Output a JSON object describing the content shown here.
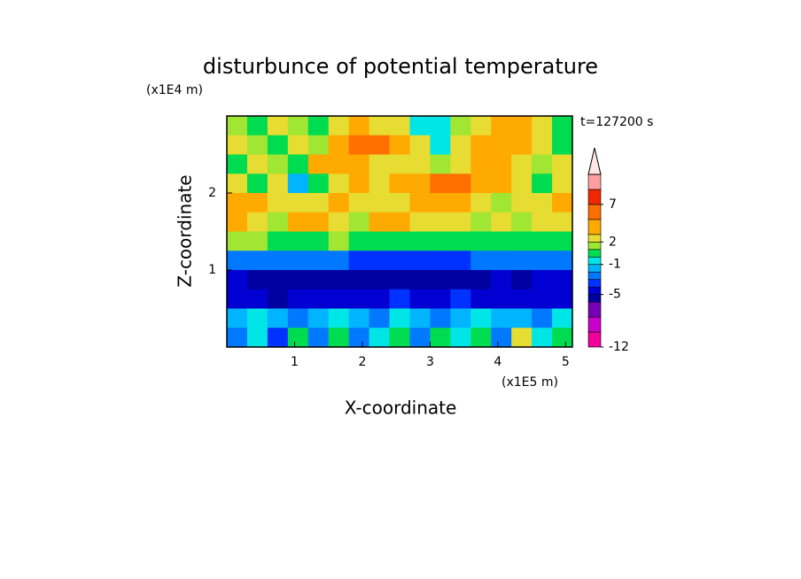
{
  "chart_data": {
    "type": "contour",
    "title": "disturbunce of potential temperature",
    "y_unit": "(x1E4 m)",
    "x_unit": "(x1E5 m)",
    "time_label": "t=127200 s",
    "xlabel": "X-coordinate",
    "ylabel": "Z-coordinate",
    "xlim": [
      0,
      5.1
    ],
    "ylim": [
      0,
      3
    ],
    "xticks": [
      1,
      2,
      3,
      4,
      5
    ],
    "yticks": [
      1,
      2
    ],
    "x": [
      0.15,
      0.45,
      0.75,
      1.05,
      1.35,
      1.65,
      1.95,
      2.25,
      2.55,
      2.85,
      3.15,
      3.45,
      3.75,
      4.05,
      4.35,
      4.65,
      4.95
    ],
    "y": [
      2.875,
      2.625,
      2.375,
      2.125,
      1.875,
      1.625,
      1.375,
      1.125,
      0.875,
      0.625,
      0.375,
      0.125
    ],
    "z": [
      [
        1.5,
        0.5,
        2.5,
        1.5,
        0.5,
        2.5,
        3,
        2.5,
        2.5,
        -0.5,
        -0.5,
        1.5,
        2.5,
        3.5,
        3.5,
        2.5,
        0.5
      ],
      [
        2.5,
        1.5,
        0.5,
        2.5,
        1.5,
        4,
        5.5,
        6,
        3,
        2.5,
        -0.5,
        2.5,
        3,
        4,
        3,
        2.5,
        0.5
      ],
      [
        0.5,
        2.5,
        1.5,
        0.5,
        3,
        4,
        4,
        2.5,
        2.5,
        2.5,
        1.5,
        2.5,
        3,
        3,
        2.5,
        1.5,
        2.5
      ],
      [
        2.5,
        0.5,
        2.5,
        -1.5,
        0.5,
        2.5,
        3,
        2.5,
        3,
        4,
        6,
        5.5,
        4,
        3,
        2.5,
        0.5,
        2.5
      ],
      [
        4,
        3,
        2.5,
        2.5,
        2.5,
        3,
        2.5,
        2.5,
        2.5,
        4,
        4,
        3,
        2.5,
        1.5,
        2.5,
        2.5,
        3
      ],
      [
        4,
        2.5,
        1.5,
        4,
        3,
        2.5,
        1.5,
        3,
        3,
        2.5,
        2.5,
        2.5,
        1.5,
        2.5,
        1.5,
        2.5,
        2.5
      ],
      [
        1.5,
        1.5,
        0.5,
        0.5,
        0.5,
        1.5,
        0.5,
        0.5,
        0.5,
        0.5,
        0.5,
        0.5,
        0.5,
        0.5,
        0.5,
        0.5,
        0.5
      ],
      [
        -2.5,
        -2.5,
        -2.5,
        -2.5,
        -2.5,
        -2.5,
        -3.5,
        -3.5,
        -3.5,
        -3.5,
        -3.5,
        -3.5,
        -2.5,
        -2.5,
        -2.5,
        -2.5,
        -2.5
      ],
      [
        -4.5,
        -5.5,
        -5.5,
        -5.5,
        -5.5,
        -5.5,
        -5.5,
        -5.5,
        -5.5,
        -5.5,
        -5.5,
        -5.5,
        -5.5,
        -4.5,
        -5.5,
        -4.5,
        -4.5
      ],
      [
        -4.5,
        -4.5,
        -5.5,
        -4.5,
        -4.5,
        -4.5,
        -4.5,
        -4.5,
        -3.5,
        -4.5,
        -4.5,
        -3.5,
        -4.5,
        -4.5,
        -4.5,
        -4.5,
        -4.5
      ],
      [
        -1.5,
        -0.5,
        -1.5,
        -2.5,
        -1.5,
        -0.5,
        -1.5,
        -2.5,
        -0.5,
        -1.5,
        -2.5,
        -1.5,
        -0.5,
        -1.5,
        -1.5,
        -2.5,
        -0.5
      ],
      [
        -2.5,
        -0.5,
        -3.5,
        0.5,
        -2.5,
        0.5,
        -2.5,
        -0.5,
        0.5,
        -2.5,
        0.5,
        -0.5,
        0.5,
        -2.5,
        2.5,
        -0.5,
        0.5
      ]
    ],
    "levels": [
      -12,
      -10,
      -8,
      -6,
      -5,
      -4,
      -3,
      -2,
      -1,
      0,
      1,
      2,
      3,
      5,
      7,
      9,
      11
    ],
    "colors": [
      "#f0009a",
      "#c800c8",
      "#7800b4",
      "#0000a0",
      "#0000d2",
      "#0032ff",
      "#0078ff",
      "#00b4ff",
      "#00e6e6",
      "#00dc50",
      "#a0e632",
      "#e6dc32",
      "#ffaa00",
      "#ff6e00",
      "#f02800",
      "#ffa0a0"
    ],
    "extend_color": "#ffe6e6",
    "cbar_lim": [
      -12,
      11
    ],
    "cbar_ticks": [
      -12,
      -5,
      -1,
      2,
      7
    ]
  }
}
